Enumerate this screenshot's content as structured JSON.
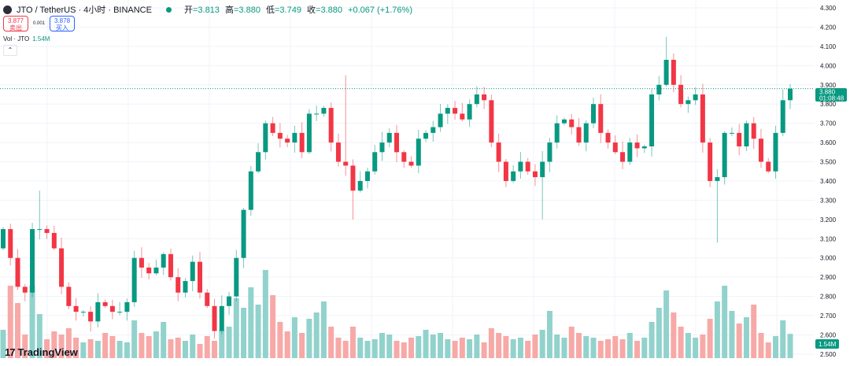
{
  "header": {
    "symbol": "JTO / TetherUS · 4小时 · BINANCE",
    "open_label": "开",
    "open": "=3.813",
    "high_label": "高",
    "high": "=3.880",
    "low_label": "低",
    "low": "=3.749",
    "close_label": "收",
    "close": "=3.880",
    "change": "+0.067 (+1.76%)"
  },
  "trade": {
    "sell_price": "3.877",
    "sell_label": "卖出",
    "spread": "0.001",
    "buy_price": "3.878",
    "buy_label": "买入"
  },
  "volume": {
    "label": "Vol · JTO",
    "value": "1.54M"
  },
  "collapse_icon": "chevron-up-icon",
  "brand": "TradingView",
  "colors": {
    "up": "#089981",
    "down": "#f23645",
    "vol_up": "#92d2cc",
    "vol_down": "#f7a9a7",
    "grid": "#f0f3fa"
  },
  "price_label": {
    "price": "3.880",
    "countdown": "01:08:48"
  },
  "chart_data": {
    "type": "candlestick",
    "ylim": [
      2.5,
      4.3
    ],
    "y_ticks": [
      "4.300",
      "4.200",
      "4.100",
      "4.000",
      "3.900",
      "3.800",
      "3.700",
      "3.600",
      "3.500",
      "3.400",
      "3.300",
      "3.200",
      "3.100",
      "3.000",
      "2.900",
      "2.800",
      "2.700",
      "2.600",
      "2.500"
    ],
    "current_price": 3.88,
    "closes": [
      3.15,
      3.0,
      2.85,
      2.82,
      3.15,
      3.15,
      3.13,
      3.05,
      2.85,
      2.75,
      2.72,
      2.72,
      2.67,
      2.77,
      2.75,
      2.72,
      2.72,
      2.77,
      3.0,
      2.95,
      2.92,
      2.95,
      3.02,
      2.9,
      2.82,
      2.88,
      2.98,
      2.82,
      2.75,
      2.62,
      2.75,
      2.8,
      3.0,
      3.25,
      3.45,
      3.55,
      3.7,
      3.65,
      3.62,
      3.6,
      3.65,
      3.55,
      3.75,
      3.75,
      3.78,
      3.6,
      3.5,
      3.48,
      3.35,
      3.4,
      3.45,
      3.55,
      3.6,
      3.65,
      3.55,
      3.5,
      3.48,
      3.62,
      3.65,
      3.68,
      3.75,
      3.78,
      3.75,
      3.72,
      3.8,
      3.85,
      3.82,
      3.6,
      3.5,
      3.4,
      3.45,
      3.5,
      3.45,
      3.42,
      3.5,
      3.6,
      3.7,
      3.72,
      3.68,
      3.6,
      3.7,
      3.8,
      3.65,
      3.6,
      3.55,
      3.5,
      3.6,
      3.57,
      3.58,
      3.85,
      3.9,
      4.03,
      3.9,
      3.8,
      3.82,
      3.85,
      3.6,
      3.4,
      3.42,
      3.65,
      3.65,
      3.58,
      3.7,
      3.62,
      3.5,
      3.45,
      3.65,
      3.82,
      3.88
    ],
    "first_open": 3.05,
    "notable_highs": {
      "5": 3.35,
      "47": 3.95,
      "91": 4.15,
      "66": 3.89
    },
    "notable_lows": {
      "98": 3.08,
      "74": 3.2,
      "48": 3.2
    },
    "volumes_m": [
      1.8,
      4.6,
      3.5,
      1.5,
      4.6,
      2.8,
      1.2,
      1.7,
      1.5,
      1.9,
      1.3,
      1.0,
      1.2,
      1.1,
      1.6,
      1.4,
      1.1,
      1.0,
      2.4,
      1.6,
      1.4,
      1.7,
      2.3,
      1.2,
      1.3,
      1.1,
      1.5,
      0.9,
      1.4,
      1.1,
      1.8,
      2.0,
      3.8,
      3.2,
      4.5,
      3.4,
      5.6,
      4.0,
      2.3,
      1.7,
      2.6,
      1.6,
      2.5,
      2.9,
      3.6,
      2.0,
      1.3,
      1.1,
      2.0,
      1.3,
      1.1,
      1.2,
      1.6,
      1.5,
      1.1,
      1.0,
      1.3,
      1.4,
      1.8,
      1.5,
      1.6,
      1.2,
      1.1,
      1.3,
      1.2,
      1.5,
      1.0,
      1.9,
      1.6,
      1.4,
      1.2,
      1.3,
      1.1,
      1.5,
      1.8,
      3.0,
      1.5,
      1.3,
      2.0,
      1.6,
      1.4,
      1.3,
      1.1,
      1.2,
      1.4,
      1.2,
      1.6,
      1.1,
      1.3,
      2.3,
      3.2,
      4.3,
      2.9,
      2.0,
      1.6,
      1.3,
      1.5,
      2.5,
      3.6,
      4.6,
      3.0,
      2.2,
      2.6,
      3.4,
      1.6,
      1.0,
      1.4,
      2.4,
      1.54
    ]
  }
}
